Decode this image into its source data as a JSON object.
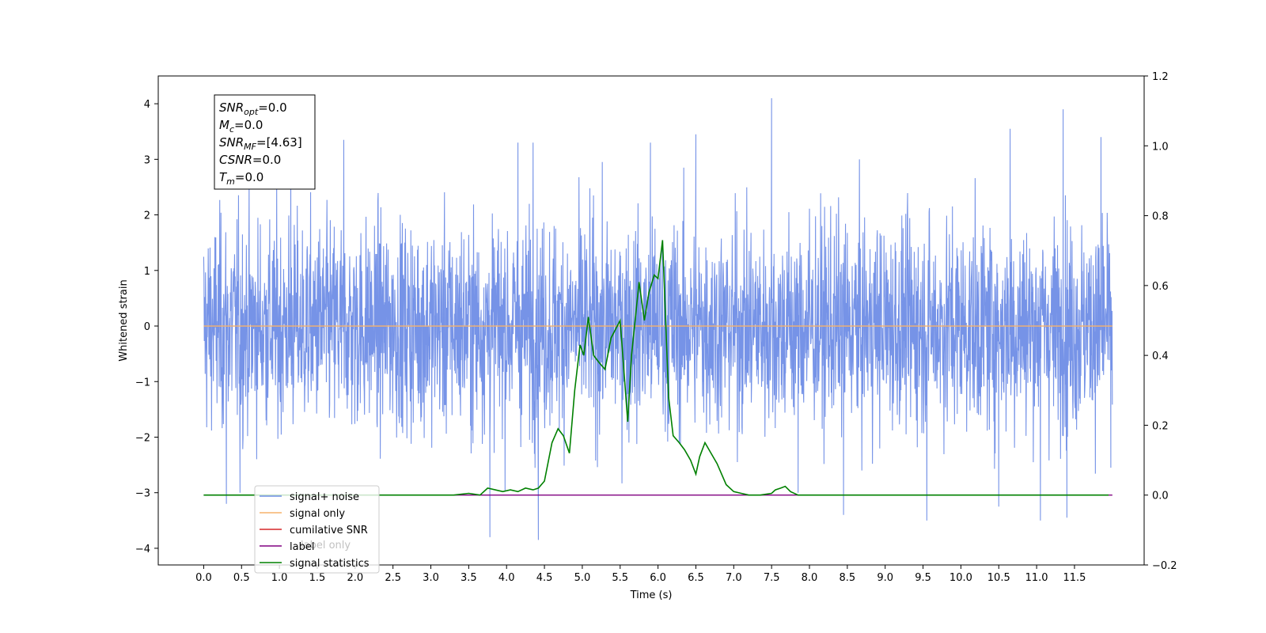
{
  "chart_data": {
    "type": "line",
    "xlabel": "Time (s)",
    "ylabel": "Whitened strain",
    "xlim": [
      -0.6,
      12.42
    ],
    "ylim": [
      -4.3,
      4.5
    ],
    "y2lim": [
      -0.2,
      1.2
    ],
    "x_ticks": [
      0.0,
      0.5,
      1.0,
      1.5,
      2.0,
      2.5,
      3.0,
      3.5,
      4.0,
      4.5,
      5.0,
      5.5,
      6.0,
      6.5,
      7.0,
      7.5,
      8.0,
      8.5,
      9.0,
      9.5,
      10.0,
      10.5,
      11.0,
      11.5
    ],
    "x_tick_labels": [
      "0.0",
      "0.5",
      "1.0",
      "1.5",
      "2.0",
      "2.5",
      "3.0",
      "3.5",
      "4.0",
      "4.5",
      "5.0",
      "5.5",
      "6.0",
      "6.5",
      "7.0",
      "7.5",
      "8.0",
      "8.5",
      "9.0",
      "9.5",
      "10.0",
      "10.5",
      "11.0",
      "11.5"
    ],
    "y_ticks": [
      -4,
      -3,
      -2,
      -1,
      0,
      1,
      2,
      3,
      4
    ],
    "y_tick_labels": [
      "−4",
      "−3",
      "−2",
      "−1",
      "0",
      "1",
      "2",
      "3",
      "4"
    ],
    "y2_ticks": [
      -0.2,
      0.0,
      0.2,
      0.4,
      0.6,
      0.8,
      1.0,
      1.2
    ],
    "y2_tick_labels": [
      "−0.2",
      "0.0",
      "0.2",
      "0.4",
      "0.6",
      "0.8",
      "1.0",
      "1.2"
    ],
    "grid": false,
    "legend_placement": "lower-left",
    "series": [
      {
        "name": "signal+ noise",
        "axis": "left",
        "color": "#6f8de6",
        "kind": "noise",
        "x_range": [
          0.0,
          12.0
        ],
        "amplitude_typical": 1.3,
        "amplitude_max": 4.1,
        "peaks": [
          {
            "x": 0.3,
            "y": -3.2
          },
          {
            "x": 0.48,
            "y": -3.0
          },
          {
            "x": 1.15,
            "y": 3.2
          },
          {
            "x": 1.85,
            "y": 3.35
          },
          {
            "x": 3.78,
            "y": -3.8
          },
          {
            "x": 4.15,
            "y": 3.3
          },
          {
            "x": 4.42,
            "y": -3.85
          },
          {
            "x": 4.35,
            "y": 3.3
          },
          {
            "x": 5.9,
            "y": 3.3
          },
          {
            "x": 6.5,
            "y": 3.45
          },
          {
            "x": 7.5,
            "y": 4.1
          },
          {
            "x": 7.85,
            "y": -3.0
          },
          {
            "x": 8.45,
            "y": -3.4
          },
          {
            "x": 9.55,
            "y": -3.5
          },
          {
            "x": 10.5,
            "y": -3.25
          },
          {
            "x": 10.65,
            "y": 3.55
          },
          {
            "x": 11.05,
            "y": -3.5
          },
          {
            "x": 11.35,
            "y": 3.9
          },
          {
            "x": 11.4,
            "y": -3.45
          },
          {
            "x": 11.85,
            "y": 3.4
          },
          {
            "x": 11.98,
            "y": -2.55
          }
        ]
      },
      {
        "name": "signal only",
        "axis": "left",
        "color": "#f5b26b",
        "x": [
          0.0,
          12.0
        ],
        "y": [
          0.0,
          0.0
        ]
      },
      {
        "name": "cumilative SNR",
        "axis": "right",
        "color": "#d62728",
        "x": [],
        "y": []
      },
      {
        "name": "label",
        "axis": "right",
        "color": "#800080",
        "x": [
          0.0,
          12.0
        ],
        "y": [
          0.0,
          0.0
        ]
      },
      {
        "name": "signal statistics",
        "axis": "right",
        "color": "#008000",
        "x": [
          0.0,
          3.3,
          3.5,
          3.65,
          3.75,
          3.85,
          3.95,
          4.05,
          4.15,
          4.25,
          4.35,
          4.42,
          4.5,
          4.6,
          4.68,
          4.75,
          4.83,
          4.9,
          4.97,
          5.02,
          5.08,
          5.15,
          5.22,
          5.3,
          5.38,
          5.5,
          5.6,
          5.65,
          5.75,
          5.82,
          5.88,
          5.95,
          6.0,
          6.06,
          6.14,
          6.2,
          6.28,
          6.35,
          6.43,
          6.5,
          6.55,
          6.62,
          6.7,
          6.78,
          6.9,
          7.0,
          7.1,
          7.2,
          7.35,
          7.5,
          7.55,
          7.62,
          7.68,
          7.75,
          7.85,
          8.0,
          8.2,
          8.5,
          9.0,
          9.5,
          10.0,
          11.0,
          11.95
        ],
        "y": [
          0.0,
          0.0,
          0.005,
          0.0,
          0.02,
          0.015,
          0.01,
          0.015,
          0.01,
          0.02,
          0.015,
          0.02,
          0.04,
          0.15,
          0.19,
          0.17,
          0.12,
          0.3,
          0.43,
          0.4,
          0.51,
          0.4,
          0.38,
          0.36,
          0.45,
          0.5,
          0.21,
          0.4,
          0.61,
          0.5,
          0.58,
          0.63,
          0.62,
          0.73,
          0.28,
          0.17,
          0.15,
          0.13,
          0.1,
          0.06,
          0.11,
          0.15,
          0.12,
          0.09,
          0.03,
          0.01,
          0.005,
          0.0,
          0.0,
          0.005,
          0.015,
          0.02,
          0.025,
          0.01,
          0.0,
          0.0,
          0.0,
          0.0,
          0.0,
          0.0,
          0.0,
          0.0,
          0.0
        ]
      }
    ]
  },
  "stats_box": {
    "lines": [
      {
        "base": "SNR",
        "sub": "opt",
        "value": "=0.0"
      },
      {
        "base": "M",
        "sub": "c",
        "value": "=0.0"
      },
      {
        "base": "SNR",
        "sub": "MF",
        "value": "=[4.63]"
      },
      {
        "base": "CSNR",
        "sub": "",
        "value": "=0.0"
      },
      {
        "base": "T",
        "sub": "m",
        "value": "=0.0"
      }
    ]
  },
  "legend_overlap_text": "label only"
}
